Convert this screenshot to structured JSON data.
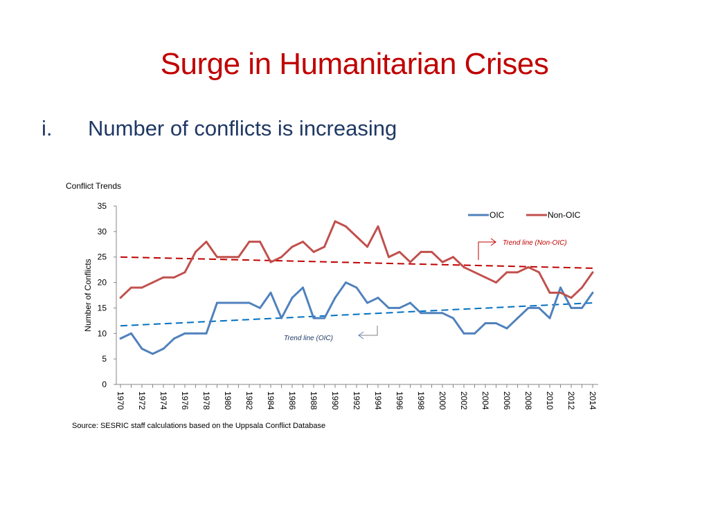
{
  "slide": {
    "title": "Surge in Humanitarian Crises",
    "bullet_number": "i.",
    "bullet_text": "Number of conflicts is increasing",
    "source": "Source: SESRIC staff calculations based on the Uppsala Conflict Database"
  },
  "chart_data": {
    "type": "line",
    "title": "Conflict Trends",
    "xlabel": "",
    "ylabel": "Number of Conflicts",
    "ylim": [
      0,
      35
    ],
    "yticks": [
      0,
      5,
      10,
      15,
      20,
      25,
      30,
      35
    ],
    "x": [
      1970,
      1971,
      1972,
      1973,
      1974,
      1975,
      1976,
      1977,
      1978,
      1979,
      1980,
      1981,
      1982,
      1983,
      1984,
      1985,
      1986,
      1987,
      1988,
      1989,
      1990,
      1991,
      1992,
      1993,
      1994,
      1995,
      1996,
      1997,
      1998,
      1999,
      2000,
      2001,
      2002,
      2003,
      2004,
      2005,
      2006,
      2007,
      2008,
      2009,
      2010,
      2011,
      2012,
      2013,
      2014
    ],
    "xtick_labels": [
      "1970",
      "1972",
      "1974",
      "1976",
      "1978",
      "1980",
      "1982",
      "1984",
      "1986",
      "1988",
      "1990",
      "1992",
      "1994",
      "1996",
      "1998",
      "2000",
      "2002",
      "2004",
      "2006",
      "2008",
      "2010",
      "2012",
      "2014"
    ],
    "legend_position": "top-right",
    "grid": false,
    "series": [
      {
        "name": "OIC",
        "color": "#4f81bd",
        "values": [
          9,
          10,
          7,
          6,
          7,
          9,
          10,
          10,
          10,
          16,
          16,
          16,
          16,
          15,
          18,
          13,
          17,
          19,
          13,
          13,
          17,
          20,
          19,
          16,
          17,
          15,
          15,
          16,
          14,
          14,
          14,
          13,
          10,
          10,
          12,
          12,
          11,
          13,
          15,
          15,
          13,
          19,
          15,
          15,
          18
        ]
      },
      {
        "name": "Non-OIC",
        "color": "#c0504d",
        "values": [
          17,
          19,
          19,
          20,
          21,
          21,
          22,
          26,
          28,
          25,
          25,
          25,
          28,
          28,
          24,
          25,
          27,
          28,
          26,
          27,
          32,
          31,
          29,
          27,
          31,
          25,
          26,
          24,
          26,
          26,
          24,
          25,
          23,
          22,
          21,
          20,
          22,
          22,
          23,
          22,
          18,
          18,
          17,
          19,
          22
        ]
      }
    ],
    "trendlines": [
      {
        "series": "Non-OIC",
        "color": "#c00000",
        "start": [
          1970,
          25
        ],
        "end": [
          2014,
          22.8
        ]
      },
      {
        "series": "OIC",
        "color": "#0070c0",
        "start": [
          1970,
          11.5
        ],
        "end": [
          2014,
          16
        ]
      }
    ],
    "annotations": [
      {
        "text": "Trend line (Non-OIC)",
        "color": "#c00000"
      },
      {
        "text": "Trend line (OIC)",
        "color": "#1f3864"
      }
    ]
  }
}
